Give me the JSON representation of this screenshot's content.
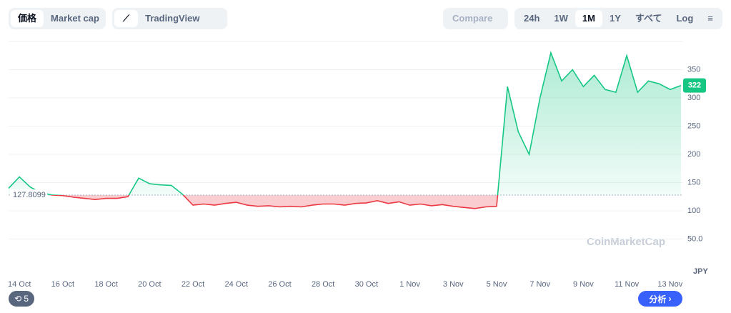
{
  "toolbar": {
    "price": "価格",
    "market_cap": "Market cap",
    "tradingview": "TradingView",
    "compare": "Compare",
    "ranges": [
      "24h",
      "1W",
      "1M",
      "1Y",
      "すべて"
    ],
    "log": "Log"
  },
  "watermark": "CoinMarketCap",
  "history_badge": "5",
  "analysis_button": "分析",
  "chart_data": {
    "type": "line",
    "categories": [
      null,
      "14 Oct",
      null,
      null,
      null,
      "16 Oct",
      null,
      null,
      null,
      "18 Oct",
      null,
      null,
      null,
      "20 Oct",
      null,
      null,
      null,
      "22 Oct",
      null,
      null,
      null,
      "24 Oct",
      null,
      null,
      null,
      "26 Oct",
      null,
      null,
      null,
      "28 Oct",
      null,
      null,
      null,
      "30 Oct",
      null,
      null,
      null,
      "1 Nov",
      null,
      null,
      null,
      "3 Nov",
      null,
      null,
      null,
      "5 Nov",
      null,
      null,
      null,
      "7 Nov",
      null,
      null,
      null,
      "9 Nov",
      null,
      null,
      null,
      "11 Nov",
      null,
      null,
      null,
      "13 Nov",
      null
    ],
    "values": [
      140,
      160,
      142,
      132,
      128,
      127,
      124,
      122,
      120,
      122,
      122,
      125,
      158,
      148,
      146,
      145,
      130,
      110,
      112,
      110,
      113,
      115,
      110,
      108,
      109,
      107,
      108,
      107,
      110,
      112,
      112,
      110,
      113,
      114,
      118,
      113,
      116,
      110,
      112,
      109,
      111,
      108,
      106,
      104,
      107,
      108,
      320,
      240,
      200,
      300,
      380,
      330,
      350,
      320,
      340,
      315,
      310,
      375,
      310,
      330,
      325,
      315,
      322
    ],
    "color_up": "#16c784",
    "color_down": "#ea3943",
    "baseline": 127.8099,
    "ylim": [
      0,
      400
    ],
    "yticks": [
      {
        "value": 50,
        "label": "50.0"
      },
      100,
      150,
      200,
      250,
      300,
      350
    ],
    "y_unit": "JPY",
    "grid": true
  }
}
